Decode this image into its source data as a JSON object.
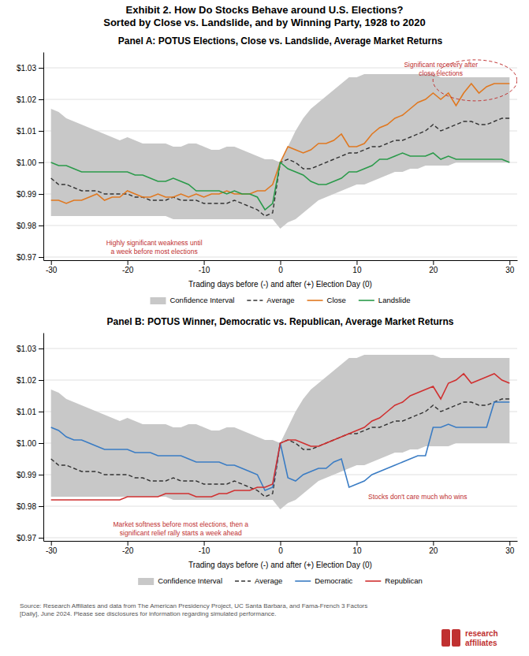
{
  "title": "Exhibit 2. How Do Stocks Behave around U.S. Elections?",
  "subtitle": "Sorted by Close vs. Landslide, and by Winning Party, 1928 to 2020",
  "annotations": [
    {
      "text": "Source: Research Affiliates and data from The American Presidency Project, UC Santa Barbara, and Fama-French 3 Factors\n[Daily], June 2024. Please see disclosures for information regarding simulated performance.",
      "color": "#555555"
    },
    {
      "text": "research",
      "color": "#c03030"
    },
    {
      "text": "affiliates",
      "color": "#c03030"
    }
  ],
  "chart_data": [
    {
      "type": "line",
      "title": "Panel A: POTUS Elections, Close vs. Landslide, Average Market Returns",
      "xlabel": "Trading days before (-) and after (+) Election Day (0)",
      "x": [
        -30,
        -29,
        -28,
        -27,
        -26,
        -25,
        -24,
        -23,
        -22,
        -21,
        -20,
        -19,
        -18,
        -17,
        -16,
        -15,
        -14,
        -13,
        -12,
        -11,
        -10,
        -9,
        -8,
        -7,
        -6,
        -5,
        -4,
        -3,
        -2,
        -1,
        0,
        1,
        2,
        3,
        4,
        5,
        6,
        7,
        8,
        9,
        10,
        11,
        12,
        13,
        14,
        15,
        16,
        17,
        18,
        19,
        20,
        21,
        22,
        23,
        24,
        25,
        26,
        27,
        28,
        29,
        30
      ],
      "series": [
        {
          "name": "Confidence Interval",
          "type": "area",
          "color": "#c8c8c8",
          "lower": [
            0.983,
            0.983,
            0.983,
            0.983,
            0.983,
            0.983,
            0.983,
            0.983,
            0.983,
            0.983,
            0.983,
            0.983,
            0.983,
            0.983,
            0.983,
            0.983,
            0.982,
            0.982,
            0.982,
            0.982,
            0.982,
            0.982,
            0.982,
            0.982,
            0.982,
            0.982,
            0.982,
            0.982,
            0.982,
            0.982,
            0.979,
            0.981,
            0.982,
            0.984,
            0.986,
            0.988,
            0.989,
            0.99,
            0.991,
            0.992,
            0.993,
            0.993,
            0.994,
            0.995,
            0.996,
            0.997,
            0.997,
            0.998,
            0.998,
            0.999,
            0.999,
            0.999,
            0.999,
            1.0,
            1.0,
            1.0,
            1.0,
            1.0,
            1.0,
            1.0,
            1.0
          ],
          "upper": [
            1.017,
            1.016,
            1.014,
            1.013,
            1.012,
            1.011,
            1.01,
            1.009,
            1.008,
            1.007,
            1.008,
            1.007,
            1.006,
            1.006,
            1.006,
            1.006,
            1.005,
            1.005,
            1.006,
            1.006,
            1.005,
            1.004,
            1.004,
            1.005,
            1.005,
            1.004,
            1.003,
            1.002,
            1.001,
            1.001,
            1.0,
            1.005,
            1.01,
            1.014,
            1.017,
            1.019,
            1.021,
            1.023,
            1.025,
            1.027,
            1.027,
            1.028,
            1.028,
            1.028,
            1.028,
            1.028,
            1.028,
            1.028,
            1.028,
            1.028,
            1.028,
            1.027,
            1.027,
            1.027,
            1.027,
            1.027,
            1.027,
            1.027,
            1.027,
            1.027,
            1.027
          ]
        },
        {
          "name": "Average",
          "type": "line",
          "color": "#333333",
          "line_style": "dashed",
          "values": [
            0.995,
            0.993,
            0.993,
            0.992,
            0.991,
            0.991,
            0.991,
            0.99,
            0.99,
            0.99,
            0.99,
            0.989,
            0.989,
            0.988,
            0.988,
            0.988,
            0.989,
            0.988,
            0.988,
            0.988,
            0.987,
            0.987,
            0.987,
            0.987,
            0.988,
            0.987,
            0.986,
            0.985,
            0.983,
            0.984,
            1.0,
            1.001,
            1.0,
            0.998,
            0.998,
            0.999,
            1.0,
            1.001,
            1.002,
            1.003,
            1.003,
            1.004,
            1.005,
            1.005,
            1.006,
            1.007,
            1.007,
            1.008,
            1.009,
            1.01,
            1.012,
            1.01,
            1.011,
            1.012,
            1.013,
            1.013,
            1.012,
            1.012,
            1.013,
            1.014,
            1.014
          ]
        },
        {
          "name": "Close",
          "type": "line",
          "color": "#e07820",
          "line_style": "solid",
          "values": [
            0.988,
            0.988,
            0.987,
            0.988,
            0.988,
            0.989,
            0.99,
            0.988,
            0.989,
            0.989,
            0.991,
            0.99,
            0.989,
            0.989,
            0.99,
            0.989,
            0.989,
            0.99,
            0.989,
            0.99,
            0.989,
            0.99,
            0.99,
            0.991,
            0.99,
            0.99,
            0.99,
            0.991,
            0.991,
            0.993,
            1.0,
            1.005,
            1.004,
            1.003,
            1.004,
            1.006,
            1.006,
            1.007,
            1.009,
            1.005,
            1.005,
            1.006,
            1.009,
            1.011,
            1.012,
            1.014,
            1.015,
            1.017,
            1.019,
            1.02,
            1.022,
            1.02,
            1.022,
            1.018,
            1.022,
            1.025,
            1.022,
            1.024,
            1.025,
            1.025,
            1.025
          ]
        },
        {
          "name": "Landslide",
          "type": "line",
          "color": "#2a9a4a",
          "line_style": "solid",
          "values": [
            1.0,
            0.999,
            0.999,
            0.998,
            0.997,
            0.997,
            0.997,
            0.997,
            0.997,
            0.997,
            0.997,
            0.996,
            0.996,
            0.995,
            0.994,
            0.994,
            0.995,
            0.994,
            0.993,
            0.991,
            0.991,
            0.991,
            0.991,
            0.99,
            0.991,
            0.99,
            0.99,
            0.989,
            0.985,
            0.987,
            1.0,
            0.998,
            0.997,
            0.996,
            0.994,
            0.993,
            0.993,
            0.994,
            0.995,
            0.997,
            0.997,
            0.998,
            0.999,
            1.001,
            1.001,
            1.002,
            1.003,
            1.002,
            1.002,
            1.002,
            1.003,
            1.001,
            1.002,
            1.001,
            1.001,
            1.001,
            1.001,
            1.001,
            1.001,
            1.001,
            1.0
          ]
        }
      ],
      "xlim": [
        -31,
        31
      ],
      "xticks": [
        -30,
        -20,
        -10,
        0,
        10,
        20,
        30
      ],
      "ylim": [
        0.969,
        1.035
      ],
      "yticks": [
        {
          "value": 0.97,
          "label": "$0.97"
        },
        {
          "value": 0.98,
          "label": "$0.98"
        },
        {
          "value": 0.99,
          "label": "$0.99"
        },
        {
          "value": 1.0,
          "label": "$1.00"
        },
        {
          "value": 1.01,
          "label": "$1.01"
        },
        {
          "value": 1.02,
          "label": "$1.02"
        },
        {
          "value": 1.03,
          "label": "$1.03"
        }
      ],
      "grid": "y",
      "legend": "bottom",
      "annotations": [
        {
          "text": "Highly significant weakness until\na week before most elections",
          "color": "#c03030"
        },
        {
          "text": "Significant recovery after\nclose elections",
          "color": "#c03030"
        }
      ]
    },
    {
      "type": "line",
      "title": "Panel B: POTUS Winner, Democratic vs. Republican, Average Market Returns",
      "xlabel": "Trading days before (-) and after (+) Election Day (0)",
      "x": [
        -30,
        -29,
        -28,
        -27,
        -26,
        -25,
        -24,
        -23,
        -22,
        -21,
        -20,
        -19,
        -18,
        -17,
        -16,
        -15,
        -14,
        -13,
        -12,
        -11,
        -10,
        -9,
        -8,
        -7,
        -6,
        -5,
        -4,
        -3,
        -2,
        -1,
        0,
        1,
        2,
        3,
        4,
        5,
        6,
        7,
        8,
        9,
        10,
        11,
        12,
        13,
        14,
        15,
        16,
        17,
        18,
        19,
        20,
        21,
        22,
        23,
        24,
        25,
        26,
        27,
        28,
        29,
        30
      ],
      "series": [
        {
          "name": "Confidence Interval",
          "type": "area",
          "color": "#c8c8c8",
          "lower": [
            0.983,
            0.983,
            0.983,
            0.983,
            0.983,
            0.983,
            0.983,
            0.983,
            0.983,
            0.983,
            0.983,
            0.983,
            0.983,
            0.983,
            0.983,
            0.983,
            0.982,
            0.982,
            0.982,
            0.982,
            0.982,
            0.982,
            0.982,
            0.982,
            0.982,
            0.982,
            0.982,
            0.982,
            0.982,
            0.982,
            0.979,
            0.981,
            0.982,
            0.984,
            0.986,
            0.988,
            0.989,
            0.99,
            0.991,
            0.992,
            0.993,
            0.993,
            0.994,
            0.995,
            0.996,
            0.997,
            0.997,
            0.998,
            0.998,
            0.999,
            0.999,
            0.999,
            0.999,
            1.0,
            1.0,
            1.0,
            1.0,
            1.0,
            1.0,
            1.0,
            1.0
          ],
          "upper": [
            1.017,
            1.016,
            1.014,
            1.013,
            1.012,
            1.011,
            1.01,
            1.009,
            1.008,
            1.007,
            1.008,
            1.007,
            1.006,
            1.006,
            1.006,
            1.006,
            1.005,
            1.005,
            1.006,
            1.006,
            1.005,
            1.004,
            1.004,
            1.005,
            1.005,
            1.004,
            1.003,
            1.002,
            1.001,
            1.001,
            1.0,
            1.005,
            1.01,
            1.014,
            1.017,
            1.019,
            1.021,
            1.023,
            1.025,
            1.027,
            1.027,
            1.028,
            1.028,
            1.028,
            1.028,
            1.028,
            1.028,
            1.028,
            1.028,
            1.028,
            1.028,
            1.027,
            1.027,
            1.027,
            1.027,
            1.027,
            1.027,
            1.027,
            1.027,
            1.027,
            1.027
          ]
        },
        {
          "name": "Average",
          "type": "line",
          "color": "#333333",
          "line_style": "dashed",
          "values": [
            0.995,
            0.993,
            0.993,
            0.992,
            0.991,
            0.991,
            0.991,
            0.99,
            0.99,
            0.99,
            0.99,
            0.989,
            0.989,
            0.988,
            0.988,
            0.988,
            0.989,
            0.988,
            0.988,
            0.988,
            0.987,
            0.987,
            0.987,
            0.987,
            0.988,
            0.987,
            0.986,
            0.985,
            0.983,
            0.984,
            1.0,
            1.001,
            1.0,
            0.998,
            0.998,
            0.999,
            1.0,
            1.001,
            1.002,
            1.003,
            1.003,
            1.004,
            1.005,
            1.005,
            1.006,
            1.007,
            1.007,
            1.008,
            1.009,
            1.01,
            1.012,
            1.01,
            1.011,
            1.012,
            1.013,
            1.013,
            1.012,
            1.012,
            1.013,
            1.014,
            1.014
          ]
        },
        {
          "name": "Democratic",
          "type": "line",
          "color": "#3a7cc4",
          "line_style": "solid",
          "values": [
            1.005,
            1.004,
            1.002,
            1.001,
            1.001,
            1.0,
            0.999,
            0.998,
            0.998,
            0.998,
            0.998,
            0.997,
            0.997,
            0.997,
            0.996,
            0.996,
            0.996,
            0.996,
            0.995,
            0.994,
            0.994,
            0.994,
            0.994,
            0.993,
            0.993,
            0.992,
            0.991,
            0.99,
            0.985,
            0.986,
            1.0,
            0.989,
            0.988,
            0.99,
            0.991,
            0.992,
            0.992,
            0.994,
            0.995,
            0.986,
            0.987,
            0.988,
            0.99,
            0.991,
            0.992,
            0.993,
            0.994,
            0.995,
            0.996,
            0.996,
            1.005,
            1.005,
            1.006,
            1.005,
            1.005,
            1.005,
            1.005,
            1.005,
            1.013,
            1.013,
            1.013
          ]
        },
        {
          "name": "Republican",
          "type": "line",
          "color": "#d03030",
          "line_style": "solid",
          "values": [
            0.982,
            0.982,
            0.982,
            0.982,
            0.982,
            0.982,
            0.982,
            0.982,
            0.982,
            0.982,
            0.983,
            0.983,
            0.983,
            0.983,
            0.983,
            0.984,
            0.984,
            0.984,
            0.984,
            0.983,
            0.983,
            0.983,
            0.984,
            0.984,
            0.985,
            0.985,
            0.985,
            0.986,
            0.986,
            0.987,
            1.0,
            1.001,
            1.001,
            1.0,
            0.999,
            0.999,
            1.0,
            1.001,
            1.002,
            1.003,
            1.004,
            1.005,
            1.007,
            1.008,
            1.01,
            1.012,
            1.013,
            1.015,
            1.016,
            1.017,
            1.018,
            1.014,
            1.019,
            1.02,
            1.022,
            1.019,
            1.02,
            1.021,
            1.022,
            1.02,
            1.019
          ]
        }
      ],
      "xlim": [
        -31,
        31
      ],
      "xticks": [
        -30,
        -20,
        -10,
        0,
        10,
        20,
        30
      ],
      "ylim": [
        0.969,
        1.035
      ],
      "yticks": [
        {
          "value": 0.97,
          "label": "$0.97"
        },
        {
          "value": 0.98,
          "label": "$0.98"
        },
        {
          "value": 0.99,
          "label": "$0.99"
        },
        {
          "value": 1.0,
          "label": "$1.00"
        },
        {
          "value": 1.01,
          "label": "$1.01"
        },
        {
          "value": 1.02,
          "label": "$1.02"
        },
        {
          "value": 1.03,
          "label": "$1.03"
        }
      ],
      "grid": "y",
      "legend": "bottom",
      "annotations": [
        {
          "text": "Market softness before most elections, then a\nsignificant relief rally starts a week ahead",
          "color": "#c03030"
        },
        {
          "text": "Stocks don't care much who wins",
          "color": "#c03030"
        }
      ]
    }
  ]
}
